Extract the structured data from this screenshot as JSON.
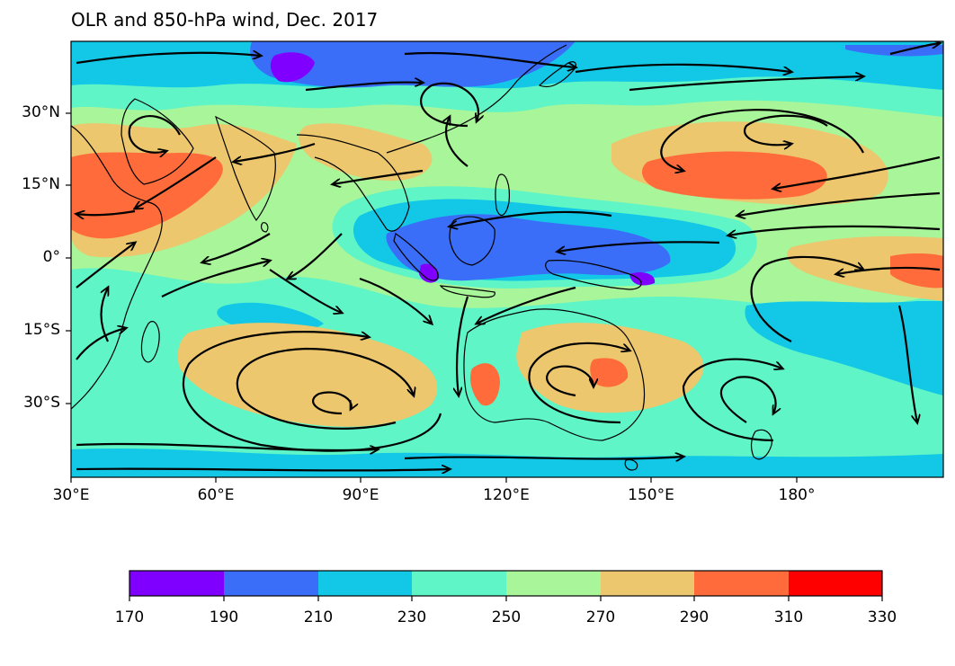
{
  "title": "OLR and 850-hPa wind, Dec. 2017",
  "map": {
    "region": "Indo-Pacific",
    "lon_range": [
      30,
      210
    ],
    "lat_range": [
      -45,
      45
    ],
    "ocean_background": "#a8f59a",
    "coastline_color": "#000000",
    "streamline_color": "#000000",
    "lat_ticks": [
      {
        "value": 30,
        "label": "30°N"
      },
      {
        "value": 15,
        "label": "15°N"
      },
      {
        "value": 0,
        "label": "0°"
      },
      {
        "value": -15,
        "label": "15°S"
      },
      {
        "value": -30,
        "label": "30°S"
      }
    ],
    "lon_ticks": [
      {
        "value": 30,
        "label": "30°E"
      },
      {
        "value": 60,
        "label": "60°E"
      },
      {
        "value": 90,
        "label": "90°E"
      },
      {
        "value": 120,
        "label": "120°E"
      },
      {
        "value": 150,
        "label": "150°E"
      },
      {
        "value": 180,
        "label": "180°"
      }
    ]
  },
  "colorbar": {
    "levels": [
      170,
      190,
      210,
      230,
      250,
      270,
      290,
      310,
      330
    ],
    "labels": [
      "170",
      "190",
      "210",
      "230",
      "250",
      "270",
      "290",
      "310",
      "330"
    ],
    "colors": [
      "#8000ff",
      "#3b6ef8",
      "#12c8e6",
      "#5ff5c6",
      "#a8f59a",
      "#ecc76e",
      "#ff6b3a",
      "#ff0000"
    ]
  }
}
